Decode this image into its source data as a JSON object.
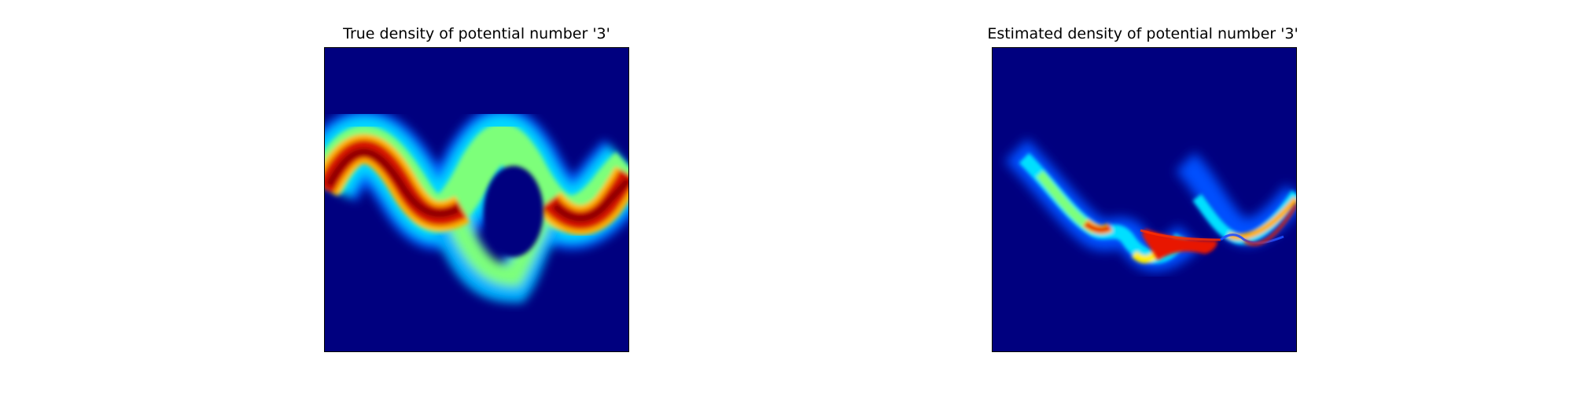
{
  "chart_data": [
    {
      "type": "heatmap",
      "title": "True density of potential number '3'",
      "colormap": "jet",
      "background_color": "#00007f",
      "axes_visible": false,
      "description_of_modes": []
    },
    {
      "type": "heatmap",
      "title": "Estimated density of potential number '3'",
      "colormap": "jet",
      "background_color": "#00007f",
      "axes_visible": false
    }
  ]
}
